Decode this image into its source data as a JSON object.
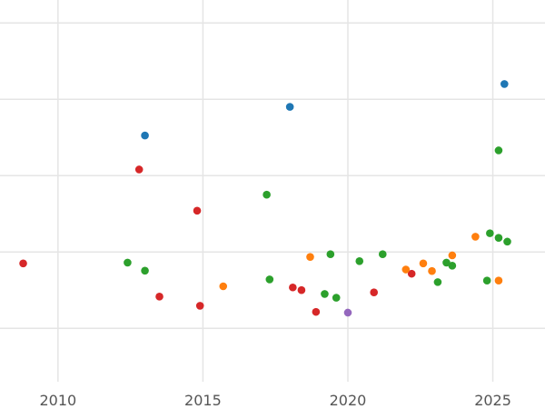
{
  "chart_data": {
    "type": "scatter",
    "title": "",
    "xlabel": "",
    "ylabel": "",
    "xlim": [
      2008.0,
      2026.8
    ],
    "ylim": [
      0,
      100
    ],
    "grid": true,
    "x_ticks": [
      2010,
      2015,
      2020,
      2025
    ],
    "x_tick_labels": [
      "2010",
      "2015",
      "2020",
      "2025"
    ],
    "y_gridlines": [
      14,
      34,
      54,
      74,
      94
    ],
    "series": [
      {
        "color": "#1f77b4",
        "points": [
          {
            "x": 2013.0,
            "y": 64.5
          },
          {
            "x": 2018.0,
            "y": 72.0
          },
          {
            "x": 2025.4,
            "y": 78.0
          }
        ]
      },
      {
        "color": "#2ca02c",
        "points": [
          {
            "x": 2012.4,
            "y": 31.2
          },
          {
            "x": 2013.0,
            "y": 29.1
          },
          {
            "x": 2017.2,
            "y": 49.0
          },
          {
            "x": 2017.3,
            "y": 26.8
          },
          {
            "x": 2019.2,
            "y": 23.0
          },
          {
            "x": 2019.4,
            "y": 33.4
          },
          {
            "x": 2019.6,
            "y": 22.0
          },
          {
            "x": 2020.4,
            "y": 31.6
          },
          {
            "x": 2021.2,
            "y": 33.4
          },
          {
            "x": 2023.1,
            "y": 26.1
          },
          {
            "x": 2023.4,
            "y": 31.2
          },
          {
            "x": 2023.6,
            "y": 30.4
          },
          {
            "x": 2024.8,
            "y": 26.5
          },
          {
            "x": 2024.9,
            "y": 38.9
          },
          {
            "x": 2025.2,
            "y": 37.7
          },
          {
            "x": 2025.2,
            "y": 60.6
          },
          {
            "x": 2025.5,
            "y": 36.7
          }
        ]
      },
      {
        "color": "#d62728",
        "points": [
          {
            "x": 2008.8,
            "y": 31.0
          },
          {
            "x": 2012.8,
            "y": 55.6
          },
          {
            "x": 2013.5,
            "y": 22.3
          },
          {
            "x": 2014.8,
            "y": 44.8
          },
          {
            "x": 2014.9,
            "y": 19.9
          },
          {
            "x": 2018.1,
            "y": 24.7
          },
          {
            "x": 2018.4,
            "y": 24.0
          },
          {
            "x": 2018.9,
            "y": 18.3
          },
          {
            "x": 2020.9,
            "y": 23.4
          },
          {
            "x": 2022.2,
            "y": 28.3
          }
        ]
      },
      {
        "color": "#ff7f0e",
        "points": [
          {
            "x": 2015.7,
            "y": 25.0
          },
          {
            "x": 2018.7,
            "y": 32.7
          },
          {
            "x": 2022.0,
            "y": 29.4
          },
          {
            "x": 2022.6,
            "y": 31.0
          },
          {
            "x": 2022.9,
            "y": 29.0
          },
          {
            "x": 2023.6,
            "y": 33.1
          },
          {
            "x": 2024.4,
            "y": 38.0
          },
          {
            "x": 2025.2,
            "y": 26.5
          }
        ]
      },
      {
        "color": "#9467bd",
        "points": [
          {
            "x": 2020.0,
            "y": 18.1
          }
        ]
      }
    ]
  }
}
